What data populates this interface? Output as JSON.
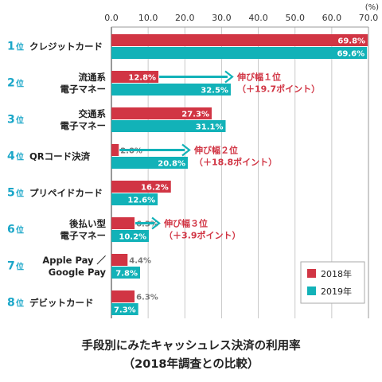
{
  "chart_data": {
    "type": "bar",
    "orientation": "horizontal",
    "title": "手段別にみたキャッシュレス決済の利用率",
    "subtitle": "（2018年調査との比較）",
    "unit_label": "(%)",
    "xlim": [
      0,
      70
    ],
    "ticks": [
      "0.0",
      "10.0",
      "20.0",
      "30.0",
      "40.0",
      "50.0",
      "60.0",
      "70.0"
    ],
    "grid": true,
    "legend_position": "bottom-right",
    "colors": {
      "2018": "#d13544",
      "2019": "#12b2b8",
      "annotation": "#d13544",
      "rank": "#19a6c8"
    },
    "categories": [
      {
        "rank": "1",
        "rank_suffix": "位",
        "lines": [
          "クレジットカード"
        ]
      },
      {
        "rank": "2",
        "rank_suffix": "位",
        "lines": [
          "流通系",
          "電子マネー"
        ]
      },
      {
        "rank": "3",
        "rank_suffix": "位",
        "lines": [
          "交通系",
          "電子マネー"
        ]
      },
      {
        "rank": "4",
        "rank_suffix": "位",
        "lines": [
          "QRコード決済"
        ]
      },
      {
        "rank": "5",
        "rank_suffix": "位",
        "lines": [
          "プリペイドカード"
        ]
      },
      {
        "rank": "6",
        "rank_suffix": "位",
        "lines": [
          "後払い型",
          "電子マネー"
        ]
      },
      {
        "rank": "7",
        "rank_suffix": "位",
        "lines": [
          "Apple Pay ／",
          "Google Pay"
        ]
      },
      {
        "rank": "8",
        "rank_suffix": "位",
        "lines": [
          "デビットカード"
        ]
      }
    ],
    "series": [
      {
        "name": "2018年",
        "key": "2018",
        "values": [
          69.8,
          12.8,
          27.3,
          2.0,
          16.2,
          6.3,
          4.4,
          6.3
        ],
        "labels": [
          "69.8%",
          "12.8%",
          "27.3%",
          "2.0%",
          "16.2%",
          "6.3%",
          "4.4%",
          "6.3%"
        ]
      },
      {
        "name": "2019年",
        "key": "2019",
        "values": [
          69.6,
          32.5,
          31.1,
          20.8,
          12.6,
          10.2,
          7.8,
          7.3
        ],
        "labels": [
          "69.6%",
          "32.5%",
          "31.1%",
          "20.8%",
          "12.6%",
          "10.2%",
          "7.8%",
          "7.3%"
        ]
      }
    ],
    "annotations": [
      {
        "category_index": 1,
        "lines": [
          "伸び幅１位",
          "（＋19.7ポイント）"
        ]
      },
      {
        "category_index": 3,
        "lines": [
          "伸び幅２位",
          "（＋18.8ポイント）"
        ]
      },
      {
        "category_index": 5,
        "lines": [
          "伸び幅３位",
          "（＋3.9ポイント）"
        ]
      }
    ]
  }
}
